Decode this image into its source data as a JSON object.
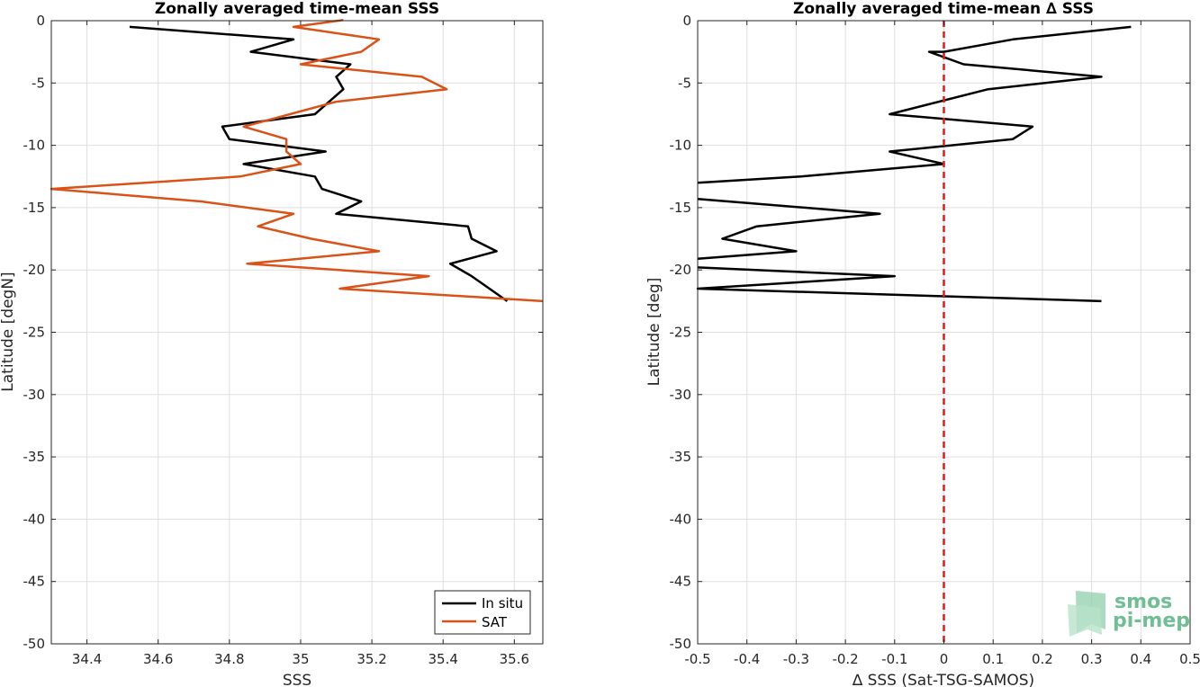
{
  "chart_data": [
    {
      "type": "line",
      "title": "Zonally averaged time-mean SSS",
      "xlabel": "SSS",
      "ylabel": "Latitude [degN]",
      "xlim": [
        34.3,
        35.68
      ],
      "ylim": [
        -50,
        0
      ],
      "xticks": [
        34.4,
        34.6,
        34.8,
        35,
        35.2,
        35.4,
        35.6
      ],
      "xtick_labels": [
        "34.4",
        "34.6",
        "34.8",
        "35",
        "35.2",
        "35.4",
        "35.6"
      ],
      "yticks": [
        0,
        -5,
        -10,
        -15,
        -20,
        -25,
        -30,
        -35,
        -40,
        -45,
        -50
      ],
      "ytick_labels": [
        "0",
        "-5",
        "-10",
        "-15",
        "-20",
        "-25",
        "-30",
        "-35",
        "-40",
        "-45",
        "-50"
      ],
      "grid": true,
      "legend_position": "bottom-right",
      "series": [
        {
          "name": "In situ",
          "color": "#000000",
          "points": [
            [
              34.52,
              -0.5
            ],
            [
              34.98,
              -1.5
            ],
            [
              34.86,
              -2.5
            ],
            [
              35.14,
              -3.5
            ],
            [
              35.1,
              -4.5
            ],
            [
              35.12,
              -5.5
            ],
            [
              35.08,
              -6.5
            ],
            [
              35.04,
              -7.5
            ],
            [
              34.78,
              -8.5
            ],
            [
              34.8,
              -9.5
            ],
            [
              35.07,
              -10.5
            ],
            [
              34.84,
              -11.5
            ],
            [
              35.04,
              -12.5
            ],
            [
              35.06,
              -13.5
            ],
            [
              35.17,
              -14.5
            ],
            [
              35.1,
              -15.5
            ],
            [
              35.47,
              -16.5
            ],
            [
              35.48,
              -17.5
            ],
            [
              35.55,
              -18.5
            ],
            [
              35.42,
              -19.5
            ],
            [
              35.48,
              -20.5
            ],
            [
              35.53,
              -21.5
            ],
            [
              35.58,
              -22.5
            ]
          ]
        },
        {
          "name": "SAT",
          "color": "#d95319",
          "points": [
            [
              35.12,
              0.05
            ],
            [
              34.98,
              -0.5
            ],
            [
              35.22,
              -1.5
            ],
            [
              35.17,
              -2.5
            ],
            [
              35.0,
              -3.5
            ],
            [
              35.34,
              -4.5
            ],
            [
              35.41,
              -5.5
            ],
            [
              35.1,
              -6.5
            ],
            [
              34.97,
              -7.5
            ],
            [
              34.84,
              -8.5
            ],
            [
              34.96,
              -9.5
            ],
            [
              34.96,
              -10.5
            ],
            [
              35.0,
              -11.5
            ],
            [
              34.83,
              -12.5
            ],
            [
              34.3,
              -13.5
            ],
            [
              34.72,
              -14.5
            ],
            [
              34.98,
              -15.5
            ],
            [
              34.88,
              -16.5
            ],
            [
              35.03,
              -17.5
            ],
            [
              35.22,
              -18.5
            ],
            [
              34.85,
              -19.5
            ],
            [
              35.36,
              -20.5
            ],
            [
              35.11,
              -21.5
            ],
            [
              35.68,
              -22.5
            ]
          ]
        }
      ]
    },
    {
      "type": "line",
      "title": "Zonally averaged time-mean ∆ SSS",
      "xlabel": "∆ SSS (Sat-TSG-SAMOS)",
      "ylabel": "Latitude [deg]",
      "xlim": [
        -0.5,
        0.5
      ],
      "ylim": [
        -50,
        0
      ],
      "xticks": [
        -0.5,
        -0.4,
        -0.3,
        -0.2,
        -0.1,
        0,
        0.1,
        0.2,
        0.3,
        0.4,
        0.5
      ],
      "xtick_labels": [
        "-0.5",
        "-0.4",
        "-0.3",
        "-0.2",
        "-0.1",
        "0",
        "0.1",
        "0.2",
        "0.3",
        "0.4",
        "0.5"
      ],
      "yticks": [
        0,
        -5,
        -10,
        -15,
        -20,
        -25,
        -30,
        -35,
        -40,
        -45,
        -50
      ],
      "ytick_labels": [
        "0",
        "-5",
        "-10",
        "-15",
        "-20",
        "-25",
        "-30",
        "-35",
        "-40",
        "-45",
        "-50"
      ],
      "grid": true,
      "reference_line": {
        "x": 0,
        "color": "#e41a1c",
        "style": "dashed"
      },
      "series": [
        {
          "color": "#000000",
          "points": [
            [
              0.38,
              -0.5
            ],
            [
              0.14,
              -1.5
            ],
            [
              0.0,
              -2.5
            ],
            [
              -0.03,
              -2.5
            ],
            [
              0.04,
              -3.5
            ],
            [
              0.32,
              -4.5
            ],
            [
              0.09,
              -5.5
            ],
            [
              -0.11,
              -7.5
            ],
            [
              0.18,
              -8.5
            ],
            [
              0.14,
              -9.5
            ],
            [
              -0.11,
              -10.5
            ],
            [
              0.0,
              -11.5
            ],
            [
              -0.29,
              -12.5
            ],
            [
              -0.5,
              -13.0
            ]
          ]
        },
        {
          "color": "#000000",
          "points": [
            [
              -0.5,
              -14.3
            ],
            [
              -0.13,
              -15.5
            ],
            [
              -0.38,
              -16.5
            ],
            [
              -0.45,
              -17.5
            ],
            [
              -0.3,
              -18.5
            ],
            [
              -0.5,
              -19.1
            ]
          ]
        },
        {
          "color": "#000000",
          "points": [
            [
              -0.5,
              -19.8
            ],
            [
              -0.1,
              -20.5
            ],
            [
              -0.5,
              -21.5
            ],
            [
              0.32,
              -22.5
            ]
          ]
        }
      ]
    }
  ],
  "logo": {
    "line1": "smos",
    "line2": "pi-mep",
    "color": "#6fbe94"
  }
}
